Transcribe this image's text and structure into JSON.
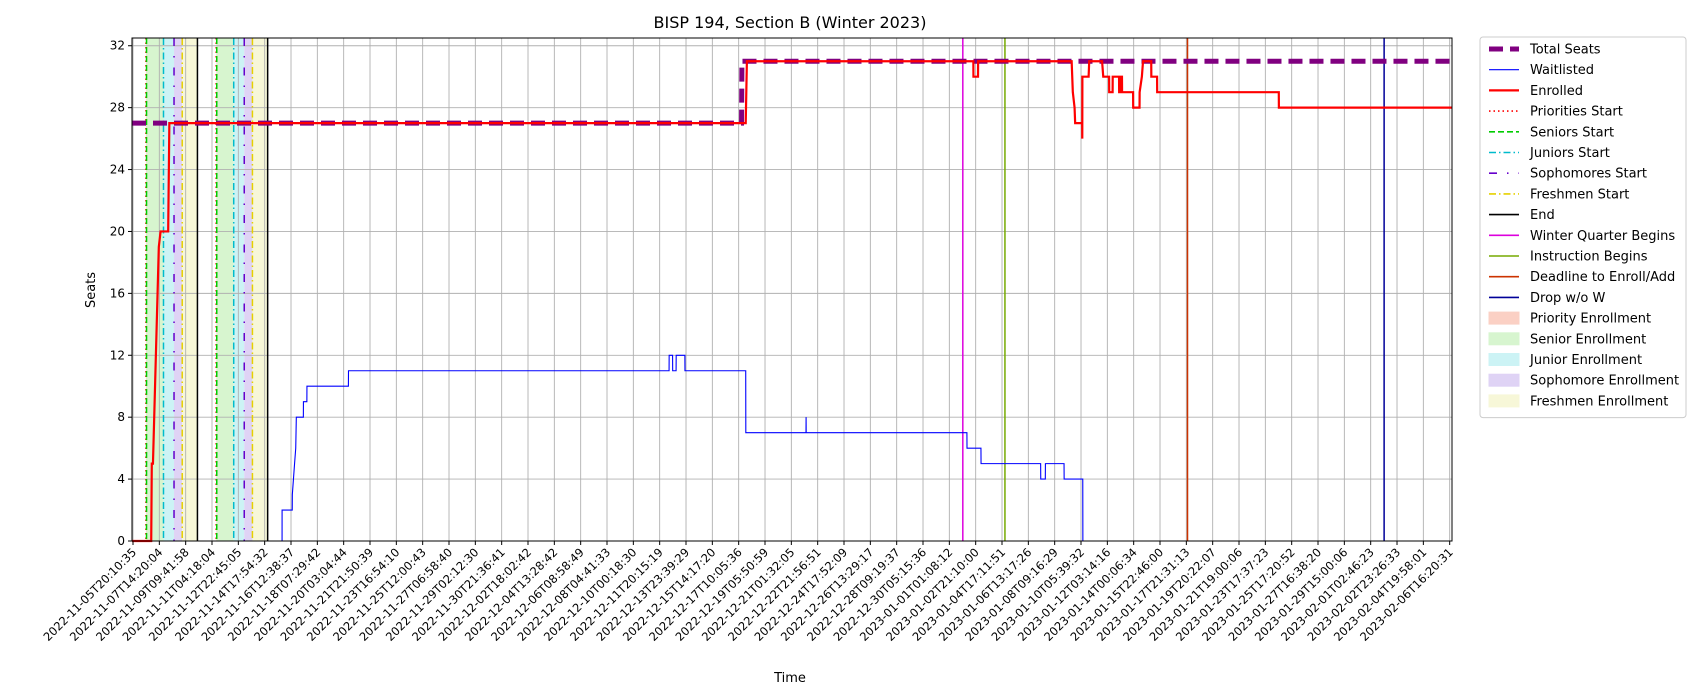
{
  "chart_data": {
    "type": "line",
    "title": "BISP 194, Section B (Winter 2023)",
    "xlabel": "Time",
    "ylabel": "Seats",
    "ylim": [
      0,
      32.5
    ],
    "yticks": [
      0,
      4,
      8,
      12,
      16,
      20,
      24,
      28,
      32
    ],
    "grid": true,
    "legend_position": "outside-right",
    "xlim": [
      "2022-11-05T20:10:35",
      "2023-02-07T20:00:00"
    ],
    "xtick_labels": [
      "2022-11-05T20:10:35",
      "2022-11-07T14:20:04",
      "2022-11-09T09:41:58",
      "2022-11-11T04:18:04",
      "2022-11-12T22:45:05",
      "2022-11-14T17:54:32",
      "2022-11-16T12:38:37",
      "2022-11-18T07:29:42",
      "2022-11-20T03:04:44",
      "2022-11-21T21:50:39",
      "2022-11-23T16:54:10",
      "2022-11-25T12:00:43",
      "2022-11-27T06:58:40",
      "2022-11-29T02:12:30",
      "2022-11-30T21:36:41",
      "2022-12-02T18:02:42",
      "2022-12-04T13:28:42",
      "2022-12-06T08:58:49",
      "2022-12-08T04:41:33",
      "2022-12-10T00:18:30",
      "2022-12-11T20:15:19",
      "2022-12-13T23:39:29",
      "2022-12-15T14:17:20",
      "2022-12-17T10:05:36",
      "2022-12-19T05:50:59",
      "2022-12-21T01:32:05",
      "2022-12-22T21:56:51",
      "2022-12-24T17:52:09",
      "2022-12-26T13:29:17",
      "2022-12-28T09:19:37",
      "2022-12-30T05:15:36",
      "2023-01-01T01:08:12",
      "2023-01-02T21:10:00",
      "2023-01-04T17:11:51",
      "2023-01-06T13:17:26",
      "2023-01-08T09:16:29",
      "2023-01-10T05:39:32",
      "2023-01-12T03:14:16",
      "2023-01-14T00:06:34",
      "2023-01-15T22:46:00",
      "2023-01-17T21:31:13",
      "2023-01-19T20:22:07",
      "2023-01-21T19:00:06",
      "2023-01-23T17:37:23",
      "2023-01-25T17:20:52",
      "2023-01-27T16:38:20",
      "2023-01-29T15:00:06",
      "2023-02-01T02:46:23",
      "2023-02-02T23:26:33",
      "2023-02-04T19:58:01",
      "2023-02-06T16:20:31"
    ],
    "series": [
      {
        "name": "Total Seats",
        "color": "#800080",
        "style": "dashed-thick",
        "points": [
          [
            "2022-11-05T20:10:35",
            27
          ],
          [
            "2022-12-19T05:50:59",
            27
          ],
          [
            "2022-12-19T06:30:00",
            31
          ],
          [
            "2023-02-07T20:00:00",
            31
          ]
        ]
      },
      {
        "name": "Waitlisted",
        "color": "#0000ff",
        "style": "solid-thin",
        "points": [
          [
            "2022-11-05T20:10:35",
            0
          ],
          [
            "2022-11-16T12:38:37",
            0
          ],
          [
            "2022-11-16T12:40:00",
            2
          ],
          [
            "2022-11-17T06:00:00",
            2
          ],
          [
            "2022-11-17T06:10:00",
            3
          ],
          [
            "2022-11-17T10:00:00",
            5
          ],
          [
            "2022-11-17T12:00:00",
            6
          ],
          [
            "2022-11-17T13:00:00",
            8
          ],
          [
            "2022-11-18T01:00:00",
            8
          ],
          [
            "2022-11-18T01:10:00",
            9
          ],
          [
            "2022-11-18T07:00:00",
            9
          ],
          [
            "2022-11-18T07:10:00",
            10
          ],
          [
            "2022-11-21T06:00:00",
            10
          ],
          [
            "2022-11-21T06:10:00",
            11
          ],
          [
            "2022-12-14T02:00:00",
            11
          ],
          [
            "2022-12-14T02:10:00",
            12
          ],
          [
            "2022-12-14T08:00:00",
            12
          ],
          [
            "2022-12-14T08:10:00",
            11
          ],
          [
            "2022-12-14T14:00:00",
            11
          ],
          [
            "2022-12-14T14:10:00",
            12
          ],
          [
            "2022-12-15T05:00:00",
            12
          ],
          [
            "2022-12-15T05:10:00",
            11
          ],
          [
            "2022-12-19T13:00:00",
            11
          ],
          [
            "2022-12-19T13:10:00",
            7
          ],
          [
            "2022-12-23T20:00:00",
            7
          ],
          [
            "2022-12-23T20:10:00",
            8
          ],
          [
            "2022-12-23T20:20:00",
            7
          ],
          [
            "2023-01-04T07:00:00",
            7
          ],
          [
            "2023-01-04T07:10:00",
            6
          ],
          [
            "2023-01-05T07:00:00",
            6
          ],
          [
            "2023-01-05T07:10:00",
            5
          ],
          [
            "2023-01-09T13:00:00",
            5
          ],
          [
            "2023-01-09T13:10:00",
            4
          ],
          [
            "2023-01-09T21:00:00",
            4
          ],
          [
            "2023-01-09T21:10:00",
            5
          ],
          [
            "2023-01-11T05:00:00",
            5
          ],
          [
            "2023-01-11T05:10:00",
            4
          ],
          [
            "2023-01-12T13:00:00",
            4
          ],
          [
            "2023-01-12T13:10:00",
            0
          ],
          [
            "2023-02-07T20:00:00",
            0
          ]
        ]
      },
      {
        "name": "Enrolled",
        "color": "#ff0000",
        "style": "solid-thick",
        "points": [
          [
            "2022-11-05T20:10:35",
            0
          ],
          [
            "2022-11-07T05:00:00",
            0
          ],
          [
            "2022-11-07T06:00:00",
            5
          ],
          [
            "2022-11-07T08:00:00",
            5
          ],
          [
            "2022-11-07T18:00:00",
            19
          ],
          [
            "2022-11-07T21:00:00",
            20
          ],
          [
            "2022-11-08T10:00:00",
            20
          ],
          [
            "2022-11-08T12:00:00",
            27
          ],
          [
            "2022-12-19T13:00:00",
            27
          ],
          [
            "2022-12-19T15:00:00",
            31
          ],
          [
            "2023-01-04T18:00:00",
            31
          ],
          [
            "2023-01-04T18:10:00",
            30
          ],
          [
            "2023-01-05T02:00:00",
            30
          ],
          [
            "2023-01-05T02:10:00",
            31
          ],
          [
            "2023-01-11T18:00:00",
            31
          ],
          [
            "2023-01-11T20:00:00",
            29
          ],
          [
            "2023-01-11T23:00:00",
            28
          ],
          [
            "2023-01-12T00:00:00",
            27
          ],
          [
            "2023-01-12T12:00:00",
            27
          ],
          [
            "2023-01-12T12:10:00",
            26
          ],
          [
            "2023-01-12T12:20:00",
            30
          ],
          [
            "2023-01-12T23:00:00",
            30
          ],
          [
            "2023-01-13T00:00:00",
            31
          ],
          [
            "2023-01-13T22:00:00",
            31
          ],
          [
            "2023-01-14T00:00:00",
            30
          ],
          [
            "2023-01-14T10:00:00",
            30
          ],
          [
            "2023-01-14T10:10:00",
            29
          ],
          [
            "2023-01-14T16:00:00",
            29
          ],
          [
            "2023-01-14T16:10:00",
            30
          ],
          [
            "2023-01-15T03:00:00",
            30
          ],
          [
            "2023-01-15T03:10:00",
            29
          ],
          [
            "2023-01-15T06:00:00",
            29
          ],
          [
            "2023-01-15T06:10:00",
            30
          ],
          [
            "2023-01-15T08:00:00",
            30
          ],
          [
            "2023-01-15T08:10:00",
            29
          ],
          [
            "2023-01-16T03:00:00",
            29
          ],
          [
            "2023-01-16T03:10:00",
            28
          ],
          [
            "2023-01-16T14:00:00",
            28
          ],
          [
            "2023-01-16T14:10:00",
            29
          ],
          [
            "2023-01-16T18:00:00",
            30
          ],
          [
            "2023-01-16T20:00:00",
            31
          ],
          [
            "2023-01-17T10:00:00",
            31
          ],
          [
            "2023-01-17T10:10:00",
            30
          ],
          [
            "2023-01-17T20:00:00",
            30
          ],
          [
            "2023-01-17T20:10:00",
            29
          ],
          [
            "2023-01-26T12:00:00",
            29
          ],
          [
            "2023-01-26T12:10:00",
            28
          ],
          [
            "2023-02-07T20:00:00",
            28
          ]
        ]
      }
    ],
    "vlines": [
      {
        "name": "Priorities Start",
        "color": "#ff0000",
        "style": "dotted",
        "x": [
          "2022-11-06T20:00:00",
          "2022-11-11T20:00:00"
        ]
      },
      {
        "name": "Seniors Start",
        "color": "#00cc00",
        "style": "dashed",
        "x": [
          "2022-11-06T21:00:00",
          "2022-11-11T21:00:00"
        ]
      },
      {
        "name": "Juniors Start",
        "color": "#00bbcc",
        "style": "dashdot",
        "x": [
          "2022-11-08T02:00:00",
          "2022-11-13T02:00:00"
        ]
      },
      {
        "name": "Sophomores Start",
        "color": "#6600cc",
        "style": "dashdot-sparse",
        "x": [
          "2022-11-08T20:00:00",
          "2022-11-13T20:00:00"
        ]
      },
      {
        "name": "Freshmen Start",
        "color": "#e6d000",
        "style": "dashdot",
        "x": [
          "2022-11-09T10:00:00",
          "2022-11-14T10:00:00"
        ]
      },
      {
        "name": "End",
        "color": "#000000",
        "style": "solid",
        "x": [
          "2022-11-10T12:00:00",
          "2022-11-15T12:00:00"
        ]
      },
      {
        "name": "Winter Quarter Begins",
        "color": "#dd00dd",
        "style": "solid",
        "x": [
          "2023-01-04T00:00:00"
        ]
      },
      {
        "name": "Instruction Begins",
        "color": "#77aa00",
        "style": "solid",
        "x": [
          "2023-01-07T00:00:00"
        ]
      },
      {
        "name": "Deadline to Enroll/Add",
        "color": "#cc3300",
        "style": "solid",
        "x": [
          "2023-01-20T00:00:00"
        ]
      },
      {
        "name": "Drop w/o W",
        "color": "#000099",
        "style": "solid",
        "x": [
          "2023-02-03T00:00:00"
        ]
      }
    ],
    "spans": [
      {
        "name": "Priority Enrollment",
        "color": "#fbd0c4",
        "ranges": [
          [
            "2022-11-06T20:00:00",
            "2022-11-06T21:00:00"
          ],
          [
            "2022-11-11T20:00:00",
            "2022-11-11T21:00:00"
          ]
        ]
      },
      {
        "name": "Senior Enrollment",
        "color": "#d7f5cf",
        "ranges": [
          [
            "2022-11-06T21:00:00",
            "2022-11-08T02:00:00"
          ],
          [
            "2022-11-11T21:00:00",
            "2022-11-13T02:00:00"
          ]
        ]
      },
      {
        "name": "Junior Enrollment",
        "color": "#ccf3f5",
        "ranges": [
          [
            "2022-11-08T02:00:00",
            "2022-11-08T20:00:00"
          ],
          [
            "2022-11-13T02:00:00",
            "2022-11-13T20:00:00"
          ]
        ]
      },
      {
        "name": "Sophomore Enrollment",
        "color": "#dfd3f5",
        "ranges": [
          [
            "2022-11-08T20:00:00",
            "2022-11-09T10:00:00"
          ],
          [
            "2022-11-13T20:00:00",
            "2022-11-14T10:00:00"
          ]
        ]
      },
      {
        "name": "Freshmen Enrollment",
        "color": "#f7f7d8",
        "ranges": [
          [
            "2022-11-09T10:00:00",
            "2022-11-10T12:00:00"
          ],
          [
            "2022-11-14T10:00:00",
            "2022-11-15T12:00:00"
          ]
        ]
      }
    ],
    "legend": [
      {
        "label": "Total Seats",
        "kind": "line",
        "color": "#800080",
        "style": "dashed-thick"
      },
      {
        "label": "Waitlisted",
        "kind": "line",
        "color": "#0000ff",
        "style": "solid-thin"
      },
      {
        "label": "Enrolled",
        "kind": "line",
        "color": "#ff0000",
        "style": "solid-thick"
      },
      {
        "label": "Priorities Start",
        "kind": "line",
        "color": "#ff0000",
        "style": "dotted"
      },
      {
        "label": "Seniors Start",
        "kind": "line",
        "color": "#00cc00",
        "style": "dashed"
      },
      {
        "label": "Juniors Start",
        "kind": "line",
        "color": "#00bbcc",
        "style": "dashdot"
      },
      {
        "label": "Sophomores Start",
        "kind": "line",
        "color": "#6600cc",
        "style": "dashdot-sparse"
      },
      {
        "label": "Freshmen Start",
        "kind": "line",
        "color": "#e6d000",
        "style": "dashdot"
      },
      {
        "label": "End",
        "kind": "line",
        "color": "#000000",
        "style": "solid"
      },
      {
        "label": "Winter Quarter Begins",
        "kind": "line",
        "color": "#dd00dd",
        "style": "solid"
      },
      {
        "label": "Instruction Begins",
        "kind": "line",
        "color": "#77aa00",
        "style": "solid"
      },
      {
        "label": "Deadline to Enroll/Add",
        "kind": "line",
        "color": "#cc3300",
        "style": "solid"
      },
      {
        "label": "Drop w/o W",
        "kind": "line",
        "color": "#000099",
        "style": "solid"
      },
      {
        "label": "Priority Enrollment",
        "kind": "patch",
        "color": "#fbd0c4"
      },
      {
        "label": "Senior Enrollment",
        "kind": "patch",
        "color": "#d7f5cf"
      },
      {
        "label": "Junior Enrollment",
        "kind": "patch",
        "color": "#ccf3f5"
      },
      {
        "label": "Sophomore Enrollment",
        "kind": "patch",
        "color": "#dfd3f5"
      },
      {
        "label": "Freshmen Enrollment",
        "kind": "patch",
        "color": "#f7f7d8"
      }
    ]
  }
}
